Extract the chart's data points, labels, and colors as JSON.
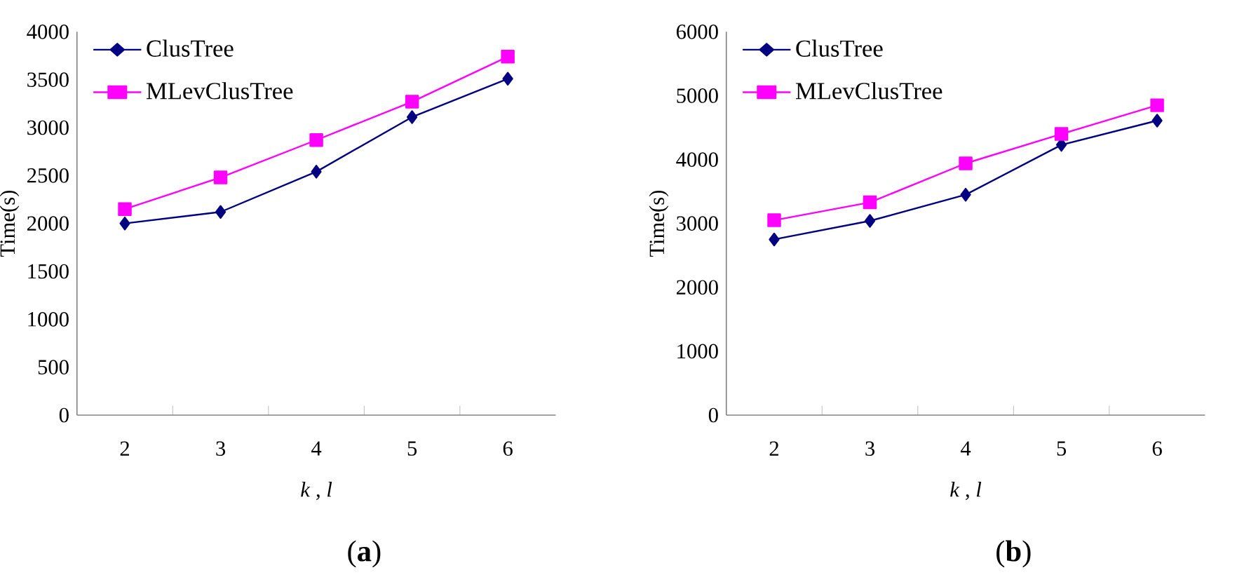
{
  "chart_data": [
    {
      "type": "line",
      "categories": [
        "2",
        "3",
        "4",
        "5",
        "6"
      ],
      "xlabel": "*k* , *l*",
      "ylabel": "Time(s)",
      "ylim": [
        0,
        4000
      ],
      "yticks": [
        0,
        500,
        1000,
        1500,
        2000,
        2500,
        3000,
        3500,
        4000
      ],
      "legend": "top left",
      "grid": false,
      "annotations": [
        "(**a**)"
      ],
      "series": [
        {
          "name": "ClusTree",
          "color": "#000080",
          "marker": "diamond",
          "values": [
            2000,
            2120,
            2540,
            3110,
            3510
          ]
        },
        {
          "name": "MLevClusTree",
          "color": "#ff00ff",
          "marker": "square",
          "values": [
            2150,
            2480,
            2870,
            3270,
            3740
          ]
        }
      ]
    },
    {
      "type": "line",
      "categories": [
        "2",
        "3",
        "4",
        "5",
        "6"
      ],
      "xlabel": "*k* , *l*",
      "ylabel": "Time(s)",
      "ylim": [
        0,
        6000
      ],
      "yticks": [
        0,
        1000,
        2000,
        3000,
        4000,
        5000,
        6000
      ],
      "legend": "top left",
      "grid": false,
      "annotations": [
        "(**b**)"
      ],
      "series": [
        {
          "name": "ClusTree",
          "color": "#000080",
          "marker": "diamond",
          "values": [
            2750,
            3040,
            3450,
            4230,
            4610
          ]
        },
        {
          "name": "MLevClusTree",
          "color": "#ff00ff",
          "marker": "square",
          "values": [
            3050,
            3330,
            3940,
            4400,
            4850
          ]
        }
      ]
    }
  ]
}
